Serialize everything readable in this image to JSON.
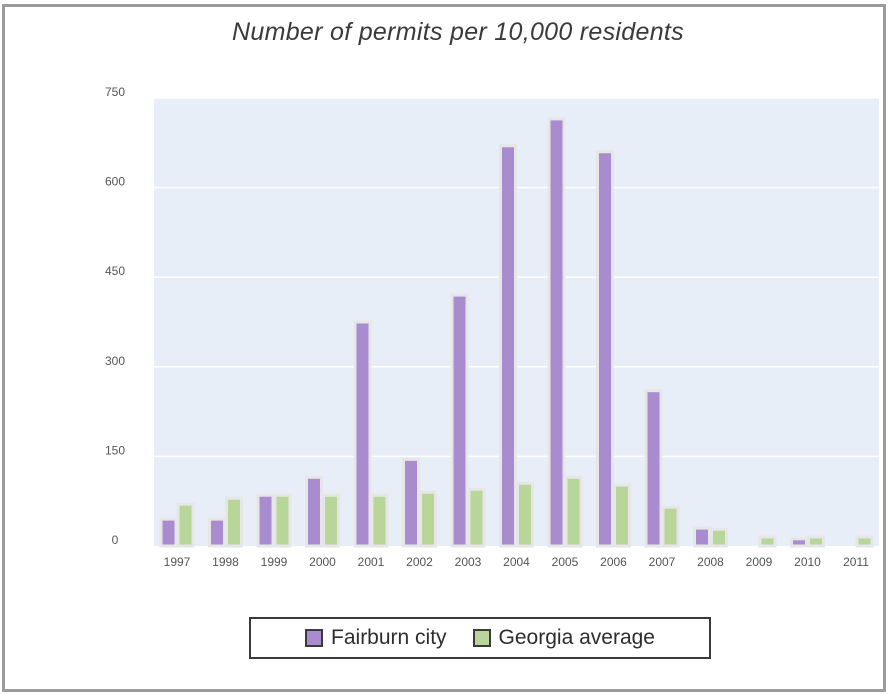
{
  "chart_data": {
    "type": "bar",
    "title": "Number of permits per 10,000 residents",
    "xlabel": "",
    "ylabel": "",
    "ylim": [
      0,
      750
    ],
    "yticks": [
      "0",
      "150",
      "300",
      "450",
      "600",
      "750"
    ],
    "grid": true,
    "legend_position": "bottom",
    "categories": [
      "1997",
      "1998",
      "1999",
      "2000",
      "2001",
      "2002",
      "2003",
      "2004",
      "2005",
      "2006",
      "2007",
      "2008",
      "2009",
      "2010",
      "2011"
    ],
    "series": [
      {
        "name": "Fairburn city",
        "color": "#a98bd0",
        "values": [
          45,
          45,
          85,
          115,
          375,
          145,
          420,
          670,
          715,
          660,
          260,
          30,
          0,
          12,
          0
        ]
      },
      {
        "name": "Georgia average",
        "color": "#b8d69a",
        "values": [
          70,
          80,
          85,
          85,
          85,
          90,
          95,
          105,
          115,
          102,
          65,
          28,
          15,
          15,
          15
        ]
      }
    ]
  }
}
